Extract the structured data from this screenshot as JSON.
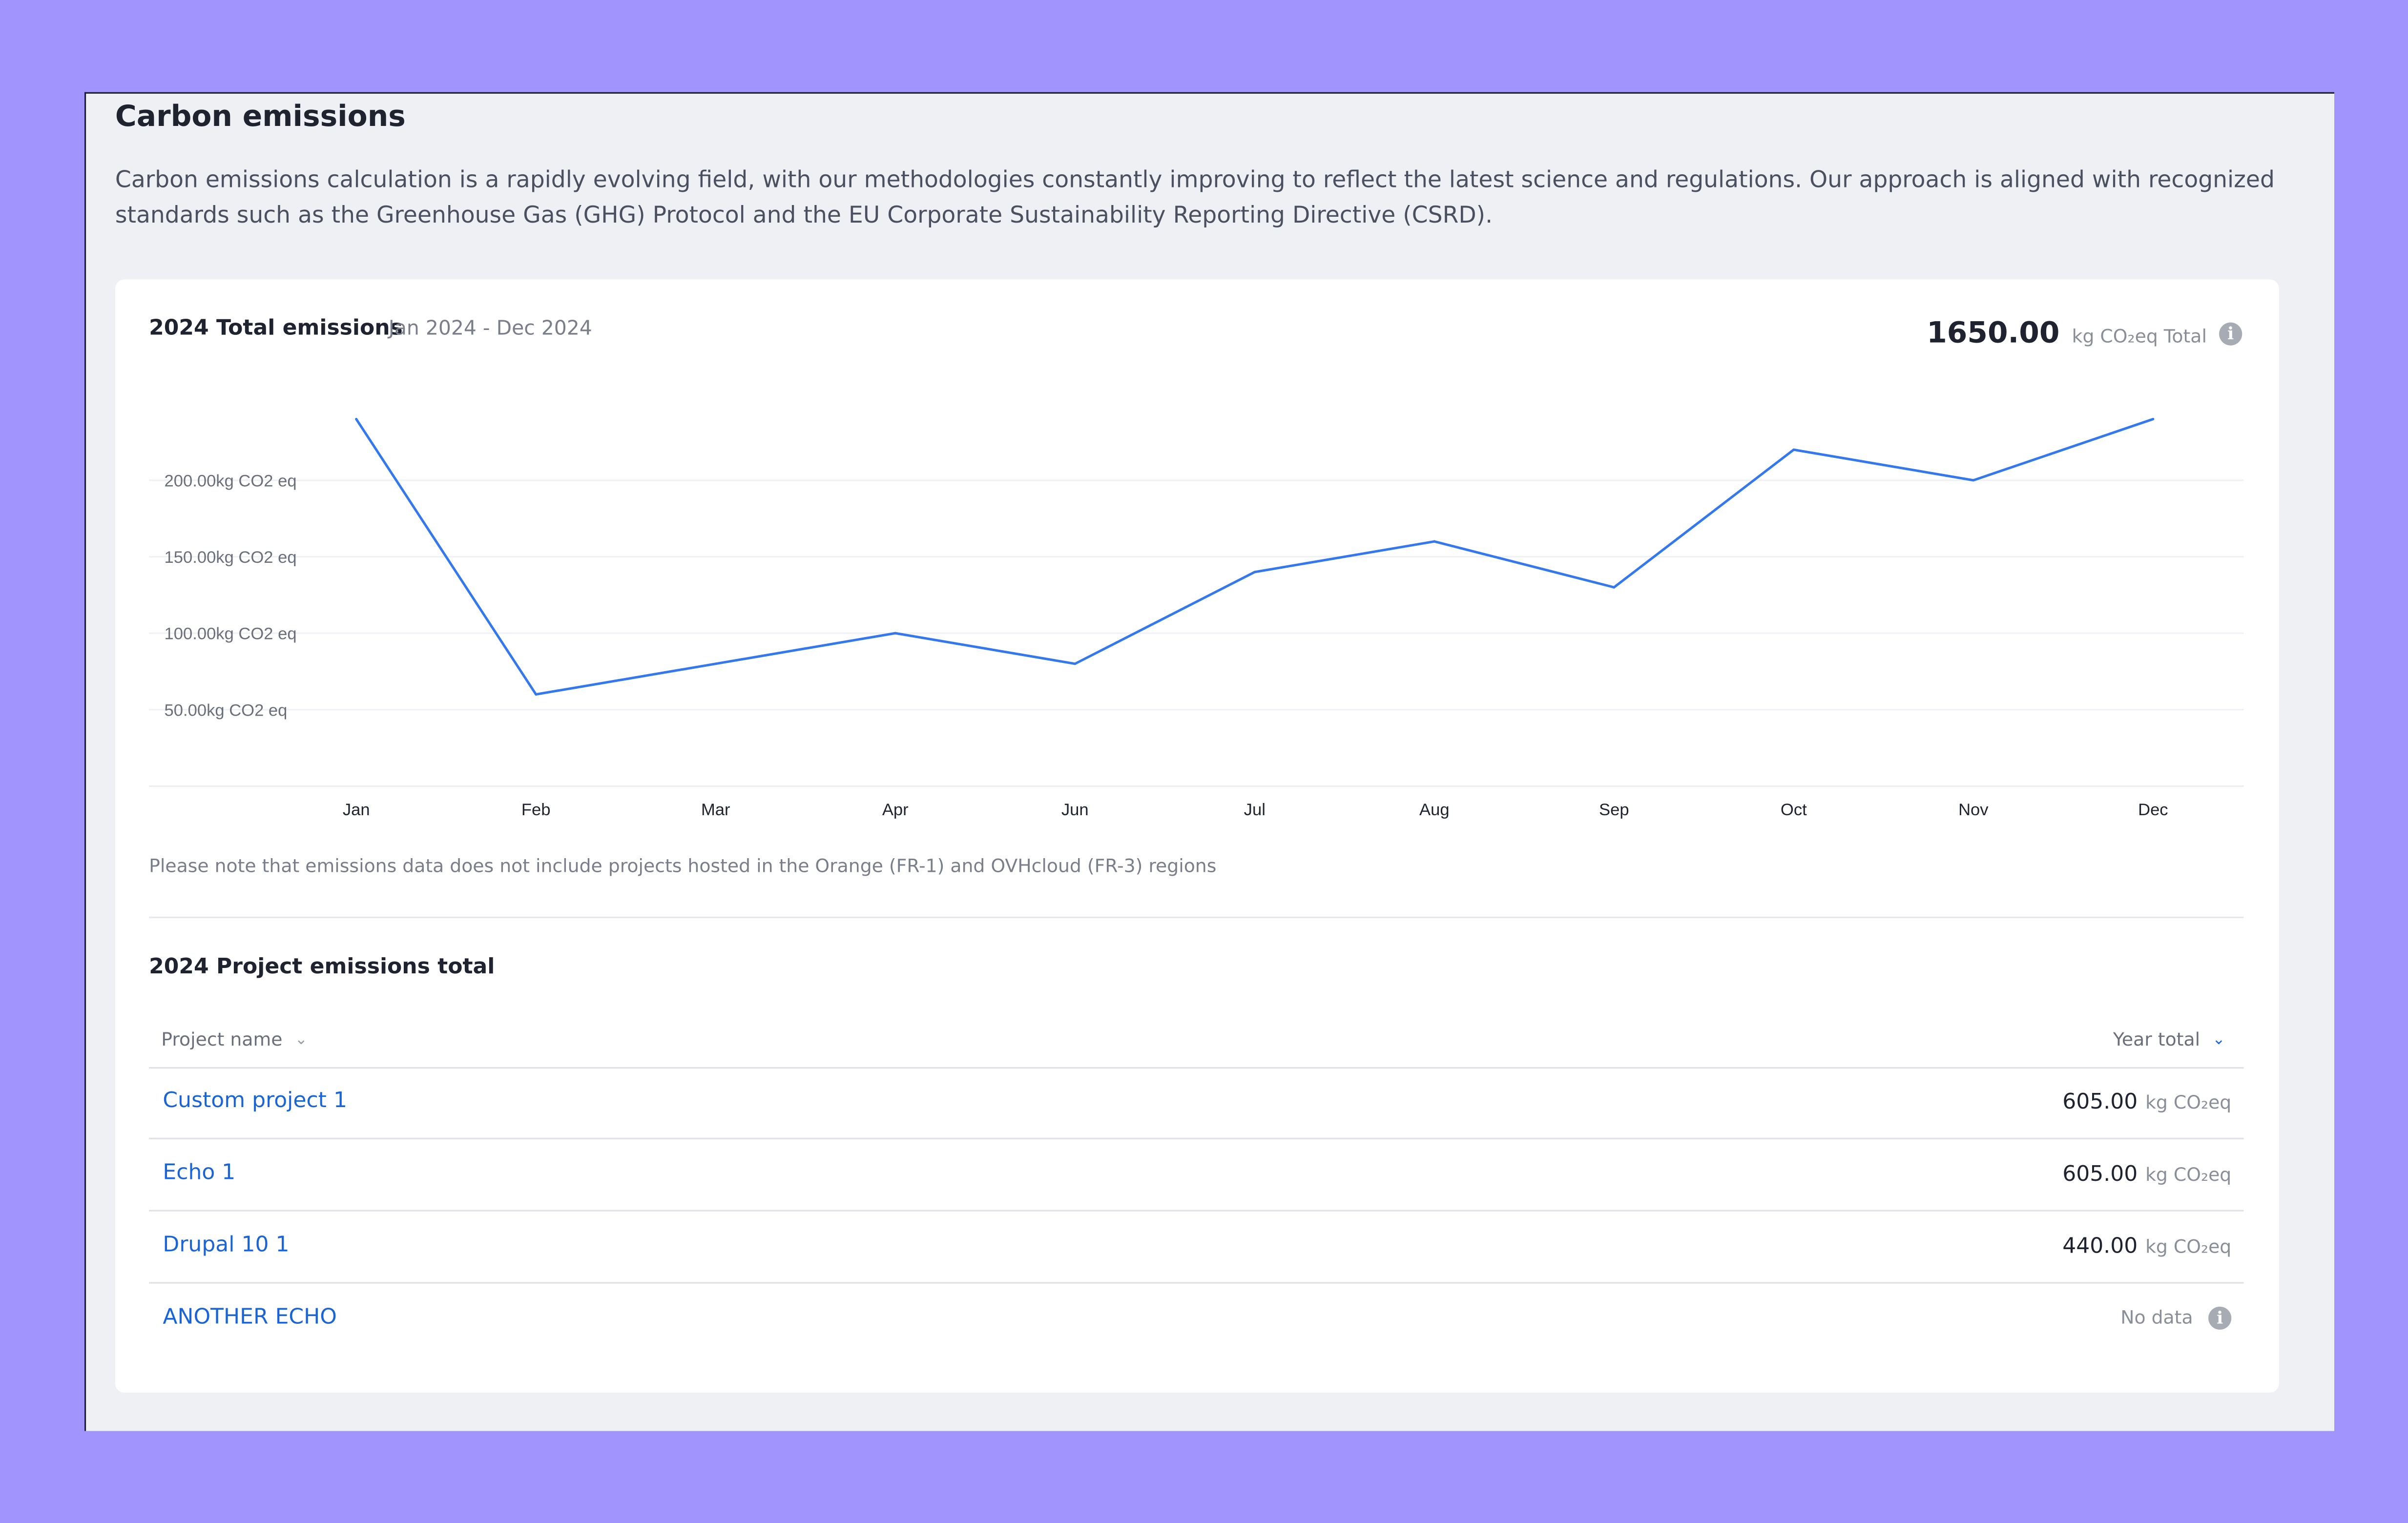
{
  "section": {
    "title": "Carbon emissions",
    "intro": "Carbon emissions calculation is a rapidly evolving field, with our methodologies constantly improving to reflect the latest science and regulations. Our approach is aligned with recognized standards such as the Greenhouse Gas (GHG) Protocol and the EU Corporate Sustainability Reporting Directive (CSRD)."
  },
  "chart_card": {
    "title": "2024 Total emissions",
    "range": "Jan 2024 - Dec 2024",
    "total_value": "1650.00",
    "total_unit": "kg CO₂eq Total",
    "info_icon": "info-icon",
    "note": "Please note that emissions data does not include projects hosted in the Orange (FR-1) and OVHcloud (FR-3) regions"
  },
  "chart_data": {
    "type": "line",
    "x": [
      "Jan",
      "Feb",
      "Mar",
      "Apr",
      "Jun",
      "Jul",
      "Aug",
      "Sep",
      "Oct",
      "Nov",
      "Dec"
    ],
    "series": [
      {
        "values": [
          240,
          60,
          80,
          100,
          80,
          140,
          160,
          130,
          220,
          200,
          240
        ]
      }
    ],
    "yticks": [
      50,
      100,
      150,
      200
    ],
    "ytick_labels": [
      "50.00kg CO2 eq",
      "100.00kg CO2 eq",
      "150.00kg CO2 eq",
      "200.00kg CO2 eq"
    ],
    "ylim": [
      0,
      250
    ],
    "grid": true,
    "line_color": "#3478f0"
  },
  "table": {
    "title": "2024 Project emissions total",
    "col_name": "Project name",
    "col_total": "Year total",
    "unit": "kg CO₂eq",
    "no_data_label": "No data",
    "rows": [
      {
        "name": "Custom project 1",
        "total": "605.00",
        "unit": "kg CO₂eq"
      },
      {
        "name": "Echo 1",
        "total": "605.00",
        "unit": "kg CO₂eq"
      },
      {
        "name": "Drupal 10 1",
        "total": "440.00",
        "unit": "kg CO₂eq"
      },
      {
        "name": "ANOTHER ECHO",
        "total": "No data",
        "info_icon": "info-icon"
      }
    ]
  },
  "colors": {
    "background": "#a194fd",
    "panel": "#eff0f4",
    "card": "#ffffff",
    "link": "#1a64d6"
  }
}
